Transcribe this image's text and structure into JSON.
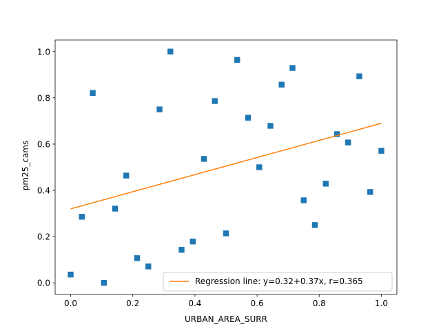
{
  "chart_data": {
    "type": "scatter",
    "title": "",
    "xlabel": "URBAN_AREA_SURR",
    "ylabel": "pm25_cams",
    "xlim": [
      -0.05,
      1.05
    ],
    "ylim": [
      -0.05,
      1.05
    ],
    "xticks": [
      0.0,
      0.2,
      0.4,
      0.6,
      0.8,
      1.0
    ],
    "xtick_labels": [
      "0.0",
      "0.2",
      "0.4",
      "0.6",
      "0.8",
      "1.0"
    ],
    "yticks": [
      0.0,
      0.2,
      0.4,
      0.6,
      0.8,
      1.0
    ],
    "ytick_labels": [
      "0.0",
      "0.2",
      "0.4",
      "0.6",
      "0.8",
      "1.0"
    ],
    "grid": false,
    "legend_position": "lower-right",
    "series": [
      {
        "marker": "square",
        "color": "#1f77b4",
        "points": [
          {
            "x": 0.0,
            "y": 0.036
          },
          {
            "x": 0.036,
            "y": 0.286
          },
          {
            "x": 0.071,
            "y": 0.821
          },
          {
            "x": 0.107,
            "y": 0.0
          },
          {
            "x": 0.143,
            "y": 0.321
          },
          {
            "x": 0.179,
            "y": 0.464
          },
          {
            "x": 0.214,
            "y": 0.107
          },
          {
            "x": 0.25,
            "y": 0.071
          },
          {
            "x": 0.286,
            "y": 0.75
          },
          {
            "x": 0.321,
            "y": 1.0
          },
          {
            "x": 0.357,
            "y": 0.143
          },
          {
            "x": 0.393,
            "y": 0.179
          },
          {
            "x": 0.429,
            "y": 0.536
          },
          {
            "x": 0.464,
            "y": 0.786
          },
          {
            "x": 0.5,
            "y": 0.214
          },
          {
            "x": 0.536,
            "y": 0.964
          },
          {
            "x": 0.571,
            "y": 0.714
          },
          {
            "x": 0.607,
            "y": 0.5
          },
          {
            "x": 0.643,
            "y": 0.679
          },
          {
            "x": 0.679,
            "y": 0.857
          },
          {
            "x": 0.714,
            "y": 0.929
          },
          {
            "x": 0.75,
            "y": 0.357
          },
          {
            "x": 0.786,
            "y": 0.25
          },
          {
            "x": 0.821,
            "y": 0.429
          },
          {
            "x": 0.857,
            "y": 0.643
          },
          {
            "x": 0.893,
            "y": 0.607
          },
          {
            "x": 0.929,
            "y": 0.893
          },
          {
            "x": 0.964,
            "y": 0.393
          },
          {
            "x": 1.0,
            "y": 0.571
          }
        ]
      },
      {
        "name": "Regression line: y=0.32+0.37x, r=0.365",
        "type": "line",
        "color": "#ff7f0e",
        "intercept": 0.32,
        "slope": 0.37,
        "r": 0.365,
        "x_range": [
          0.0,
          1.0
        ]
      }
    ]
  }
}
